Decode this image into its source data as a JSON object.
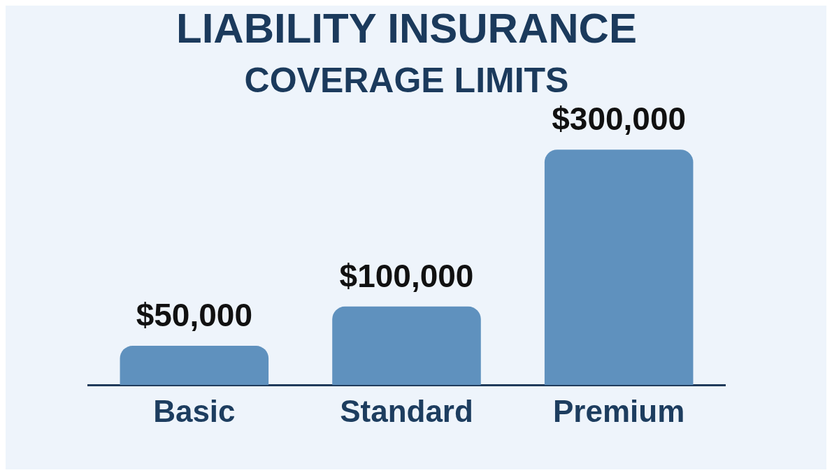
{
  "chart_data": {
    "type": "bar",
    "title": "LIABILITY INSURANCE",
    "subtitle": "COVERAGE LIMITS",
    "categories": [
      "Basic",
      "Standard",
      "Premium"
    ],
    "values": [
      50000,
      100000,
      300000
    ],
    "value_labels": [
      "$50,000",
      "$100,000",
      "$300,000"
    ],
    "color": "#5f91be",
    "grid": false,
    "legend": false
  }
}
